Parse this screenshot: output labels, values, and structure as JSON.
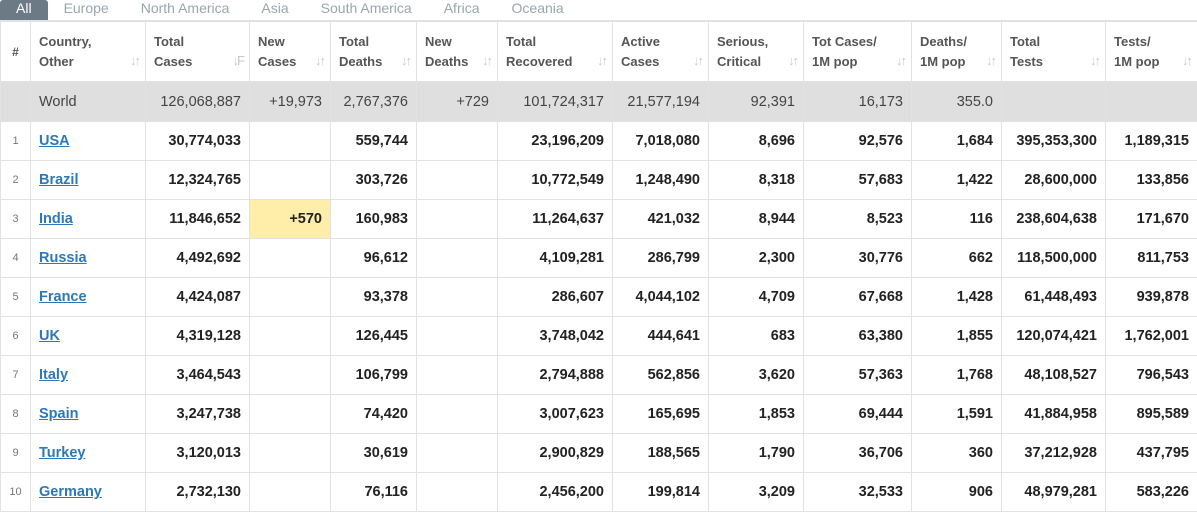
{
  "tabs": [
    "All",
    "Europe",
    "North America",
    "Asia",
    "South America",
    "Africa",
    "Oceania"
  ],
  "columns": [
    {
      "l1": "#",
      "l2": ""
    },
    {
      "l1": "Country,",
      "l2": "Other"
    },
    {
      "l1": "Total",
      "l2": "Cases"
    },
    {
      "l1": "New",
      "l2": "Cases"
    },
    {
      "l1": "Total",
      "l2": "Deaths"
    },
    {
      "l1": "New",
      "l2": "Deaths"
    },
    {
      "l1": "Total",
      "l2": "Recovered"
    },
    {
      "l1": "Active",
      "l2": "Cases"
    },
    {
      "l1": "Serious,",
      "l2": "Critical"
    },
    {
      "l1": "Tot Cases/",
      "l2": "1M pop"
    },
    {
      "l1": "Deaths/",
      "l2": "1M pop"
    },
    {
      "l1": "Total",
      "l2": "Tests"
    },
    {
      "l1": "Tests/",
      "l2": "1M pop"
    }
  ],
  "world": {
    "country": "World",
    "total_cases": "126,068,887",
    "new_cases": "+19,973",
    "total_deaths": "2,767,376",
    "new_deaths": "+729",
    "total_recovered": "101,724,317",
    "active_cases": "21,577,194",
    "serious": "92,391",
    "cases_per_m": "16,173",
    "deaths_per_m": "355.0",
    "total_tests": "",
    "tests_per_m": ""
  },
  "rows": [
    {
      "idx": "1",
      "country": "USA",
      "total_cases": "30,774,033",
      "new_cases": "",
      "total_deaths": "559,744",
      "new_deaths": "",
      "total_recovered": "23,196,209",
      "active_cases": "7,018,080",
      "serious": "8,696",
      "cases_per_m": "92,576",
      "deaths_per_m": "1,684",
      "total_tests": "395,353,300",
      "tests_per_m": "1,189,315"
    },
    {
      "idx": "2",
      "country": "Brazil",
      "total_cases": "12,324,765",
      "new_cases": "",
      "total_deaths": "303,726",
      "new_deaths": "",
      "total_recovered": "10,772,549",
      "active_cases": "1,248,490",
      "serious": "8,318",
      "cases_per_m": "57,683",
      "deaths_per_m": "1,422",
      "total_tests": "28,600,000",
      "tests_per_m": "133,856"
    },
    {
      "idx": "3",
      "country": "India",
      "total_cases": "11,846,652",
      "new_cases": "+570",
      "total_deaths": "160,983",
      "new_deaths": "",
      "total_recovered": "11,264,637",
      "active_cases": "421,032",
      "serious": "8,944",
      "cases_per_m": "8,523",
      "deaths_per_m": "116",
      "total_tests": "238,604,638",
      "tests_per_m": "171,670"
    },
    {
      "idx": "4",
      "country": "Russia",
      "total_cases": "4,492,692",
      "new_cases": "",
      "total_deaths": "96,612",
      "new_deaths": "",
      "total_recovered": "4,109,281",
      "active_cases": "286,799",
      "serious": "2,300",
      "cases_per_m": "30,776",
      "deaths_per_m": "662",
      "total_tests": "118,500,000",
      "tests_per_m": "811,753"
    },
    {
      "idx": "5",
      "country": "France",
      "total_cases": "4,424,087",
      "new_cases": "",
      "total_deaths": "93,378",
      "new_deaths": "",
      "total_recovered": "286,607",
      "active_cases": "4,044,102",
      "serious": "4,709",
      "cases_per_m": "67,668",
      "deaths_per_m": "1,428",
      "total_tests": "61,448,493",
      "tests_per_m": "939,878"
    },
    {
      "idx": "6",
      "country": "UK",
      "total_cases": "4,319,128",
      "new_cases": "",
      "total_deaths": "126,445",
      "new_deaths": "",
      "total_recovered": "3,748,042",
      "active_cases": "444,641",
      "serious": "683",
      "cases_per_m": "63,380",
      "deaths_per_m": "1,855",
      "total_tests": "120,074,421",
      "tests_per_m": "1,762,001"
    },
    {
      "idx": "7",
      "country": "Italy",
      "total_cases": "3,464,543",
      "new_cases": "",
      "total_deaths": "106,799",
      "new_deaths": "",
      "total_recovered": "2,794,888",
      "active_cases": "562,856",
      "serious": "3,620",
      "cases_per_m": "57,363",
      "deaths_per_m": "1,768",
      "total_tests": "48,108,527",
      "tests_per_m": "796,543"
    },
    {
      "idx": "8",
      "country": "Spain",
      "total_cases": "3,247,738",
      "new_cases": "",
      "total_deaths": "74,420",
      "new_deaths": "",
      "total_recovered": "3,007,623",
      "active_cases": "165,695",
      "serious": "1,853",
      "cases_per_m": "69,444",
      "deaths_per_m": "1,591",
      "total_tests": "41,884,958",
      "tests_per_m": "895,589"
    },
    {
      "idx": "9",
      "country": "Turkey",
      "total_cases": "3,120,013",
      "new_cases": "",
      "total_deaths": "30,619",
      "new_deaths": "",
      "total_recovered": "2,900,829",
      "active_cases": "188,565",
      "serious": "1,790",
      "cases_per_m": "36,706",
      "deaths_per_m": "360",
      "total_tests": "37,212,928",
      "tests_per_m": "437,795"
    },
    {
      "idx": "10",
      "country": "Germany",
      "total_cases": "2,732,130",
      "new_cases": "",
      "total_deaths": "76,116",
      "new_deaths": "",
      "total_recovered": "2,456,200",
      "active_cases": "199,814",
      "serious": "3,209",
      "cases_per_m": "32,533",
      "deaths_per_m": "906",
      "total_tests": "48,979,281",
      "tests_per_m": "583,226"
    }
  ],
  "colors": {
    "active_tab_bg": "#6c7a86",
    "inactive_tab": "#9aa5ad",
    "link": "#2c78b8",
    "world_row_bg": "#dfdfdf",
    "new_cases_highlight": "#ffeeaa"
  }
}
